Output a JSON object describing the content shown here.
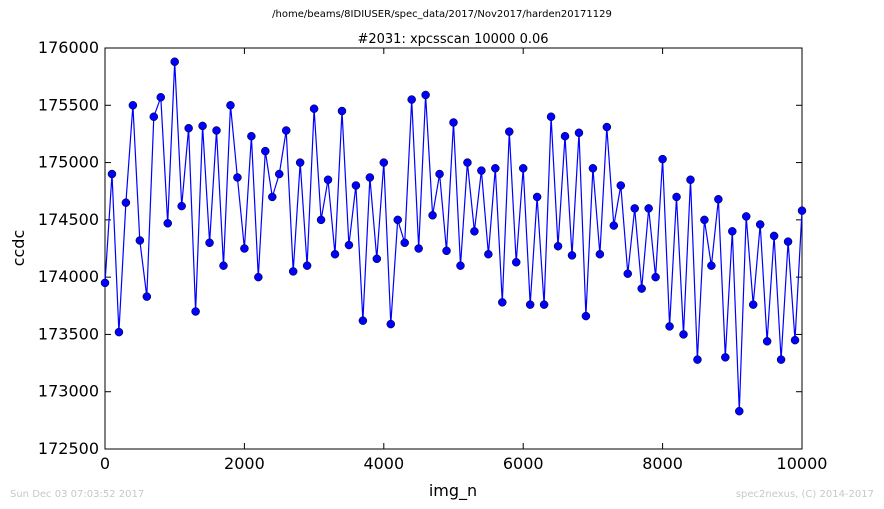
{
  "suptitle": "/home/beams/8IDIUSER/spec_data/2017/Nov2017/harden20171129",
  "footer": {
    "timestamp": "Sun Dec 03 07:03:52 2017",
    "credit": "spec2nexus, (C) 2014-2017"
  },
  "colors": {
    "series": "#0000ff",
    "axes": "#000000",
    "footer": "#c8c8c8"
  },
  "chart_data": {
    "type": "line",
    "title": "#2031: xpcsscan 10000 0.06",
    "xlabel": "img_n",
    "ylabel": "ccdc",
    "xlim": [
      0,
      10000
    ],
    "ylim": [
      172500,
      176000
    ],
    "xticks": [
      0,
      2000,
      4000,
      6000,
      8000,
      10000
    ],
    "yticks": [
      172500,
      173000,
      173500,
      174000,
      174500,
      175000,
      175500,
      176000
    ],
    "grid": false,
    "marker": "circle",
    "series": [
      {
        "x": [
          0,
          100,
          200,
          300,
          400,
          500,
          600,
          700,
          800,
          900,
          1000,
          1100,
          1200,
          1300,
          1400,
          1500,
          1600,
          1700,
          1800,
          1900,
          2000,
          2100,
          2200,
          2300,
          2400,
          2500,
          2600,
          2700,
          2800,
          2900,
          3000,
          3100,
          3200,
          3300,
          3400,
          3500,
          3600,
          3700,
          3800,
          3900,
          4000,
          4100,
          4200,
          4300,
          4400,
          4500,
          4600,
          4700,
          4800,
          4900,
          5000,
          5100,
          5200,
          5300,
          5400,
          5500,
          5600,
          5700,
          5800,
          5900,
          6000,
          6100,
          6200,
          6300,
          6400,
          6500,
          6600,
          6700,
          6800,
          6900,
          7000,
          7100,
          7200,
          7300,
          7400,
          7500,
          7600,
          7700,
          7800,
          7900,
          8000,
          8100,
          8200,
          8300,
          8400,
          8500,
          8600,
          8700,
          8800,
          8900,
          9000,
          9100,
          9200,
          9300,
          9400,
          9500,
          9600,
          9700,
          9800,
          9900,
          10000
        ],
        "values": [
          173950,
          174900,
          173520,
          174650,
          175500,
          174320,
          173830,
          175400,
          175570,
          174470,
          175880,
          174620,
          175300,
          173700,
          175320,
          174300,
          175280,
          174100,
          175500,
          174870,
          174250,
          175230,
          174000,
          175100,
          174700,
          174900,
          175280,
          174050,
          175000,
          174100,
          175470,
          174500,
          174850,
          174200,
          175450,
          174280,
          174800,
          173620,
          174870,
          174160,
          175000,
          173590,
          174500,
          174300,
          175550,
          174250,
          175590,
          174540,
          174900,
          174230,
          175350,
          174100,
          175000,
          174400,
          174930,
          174200,
          174950,
          173780,
          175270,
          174130,
          174950,
          173760,
          174700,
          173760,
          175400,
          174270,
          175230,
          174190,
          175260,
          173660,
          174950,
          174200,
          175310,
          174450,
          174800,
          174030,
          174600,
          173900,
          174600,
          174000,
          175030,
          173570,
          174700,
          173500,
          174850,
          173280,
          174500,
          174100,
          174680,
          173300,
          174400,
          172830,
          174530,
          173760,
          174460,
          173440,
          174360,
          173280,
          174310,
          173450,
          174580
        ]
      }
    ]
  }
}
